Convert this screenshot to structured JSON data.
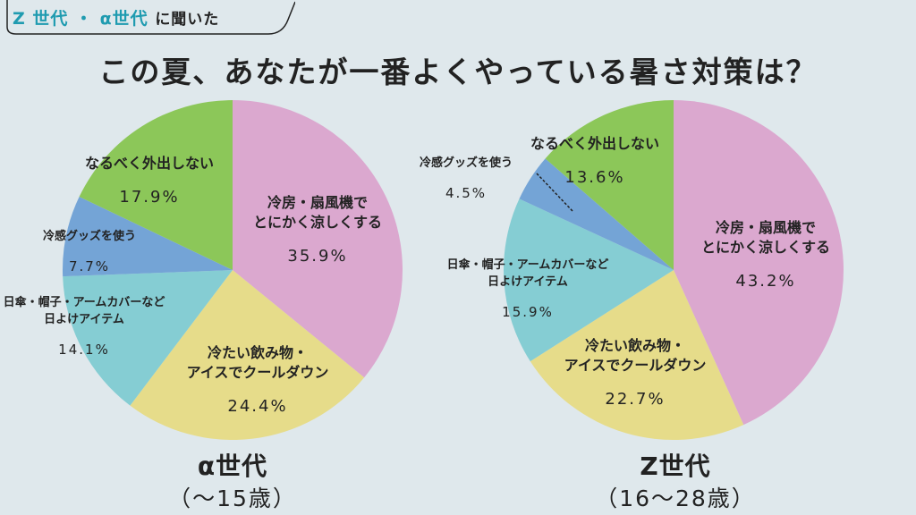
{
  "header": {
    "tag_highlight": "Z 世代 ・ α世代",
    "tag_rest": "に聞いた",
    "title": "この夏、あなたが一番よくやっている暑さ対策は？"
  },
  "colors": {
    "pink": "#dba8cf",
    "yellow": "#e6dc8a",
    "teal": "#85cdd3",
    "blue": "#74a4d6",
    "green": "#8cc759",
    "accent": "#1f9bb0",
    "background": "#dfe8ec"
  },
  "chart_data": [
    {
      "type": "pie",
      "group": "α世代",
      "age_range": "（〜15歳）",
      "slices": [
        {
          "label": [
            "冷房・扇風機で",
            "とにかく涼しくする"
          ],
          "value": 35.9,
          "color": "pink"
        },
        {
          "label": [
            "冷たい飲み物・",
            "アイスでクールダウン"
          ],
          "value": 24.4,
          "color": "yellow"
        },
        {
          "label": [
            "日傘・帽子・アームカバーなど",
            "日よけアイテム"
          ],
          "value": 14.1,
          "color": "teal"
        },
        {
          "label": [
            "冷感グッズを使う"
          ],
          "value": 7.7,
          "color": "blue"
        },
        {
          "label": [
            "なるべく外出しない"
          ],
          "value": 17.9,
          "color": "green"
        }
      ]
    },
    {
      "type": "pie",
      "group": "Z世代",
      "age_range": "（16〜28歳）",
      "slices": [
        {
          "label": [
            "冷房・扇風機で",
            "とにかく涼しくする"
          ],
          "value": 43.2,
          "color": "pink"
        },
        {
          "label": [
            "冷たい飲み物・",
            "アイスでクールダウン"
          ],
          "value": 22.7,
          "color": "yellow"
        },
        {
          "label": [
            "日傘・帽子・アームカバーなど",
            "日よけアイテム"
          ],
          "value": 15.9,
          "color": "teal"
        },
        {
          "label": [
            "冷感グッズを使う"
          ],
          "value": 4.5,
          "color": "blue"
        },
        {
          "label": [
            "なるべく外出しない"
          ],
          "value": 13.6,
          "color": "green"
        }
      ]
    }
  ]
}
